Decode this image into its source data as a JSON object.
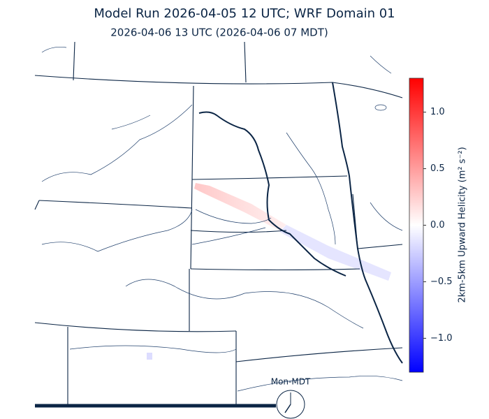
{
  "title": "Model Run 2026-04-05 12 UTC; WRF Domain 01",
  "subtitle": "2026-04-06 13 UTC  (2026-04-06 07 MDT)",
  "clock_label": "Mon-MDT",
  "colorbar": {
    "label": "2km-5km Upward Helicity (m² s⁻²)",
    "lim": [
      -1.3,
      1.3
    ],
    "ticks": [
      {
        "value": 1.0,
        "label": "1.0"
      },
      {
        "value": 0.5,
        "label": "0.5"
      },
      {
        "value": 0.0,
        "label": "0.0"
      },
      {
        "value": -0.5,
        "label": "−0.5"
      },
      {
        "value": -1.0,
        "label": "−1.0"
      }
    ],
    "colors": [
      "#0000ff",
      "#ffffff",
      "#ff0000"
    ]
  }
}
